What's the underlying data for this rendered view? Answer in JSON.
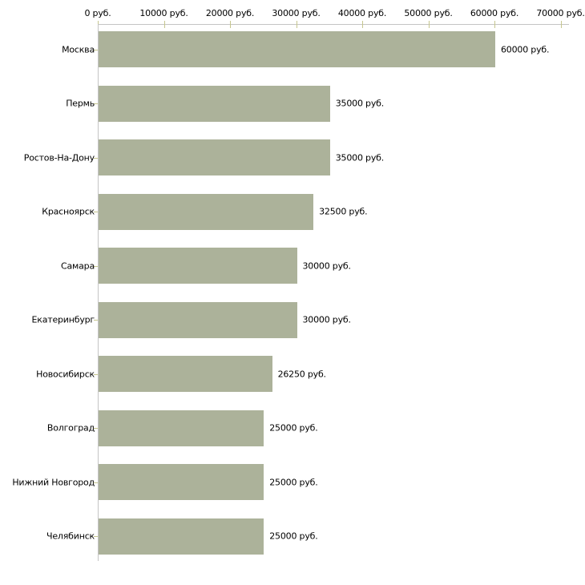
{
  "chart_data": {
    "type": "bar",
    "orientation": "horizontal",
    "title": "",
    "categories": [
      "Москва",
      "Пермь",
      "Ростов-На-Дону",
      "Красноярск",
      "Самара",
      "Екатеринбург",
      "Новосибирск",
      "Волгоград",
      "Нижний Новгород",
      "Челябинск"
    ],
    "values": [
      60000,
      35000,
      35000,
      32500,
      30000,
      30000,
      26250,
      25000,
      25000,
      25000
    ],
    "value_labels": [
      "60000 руб.",
      "35000 руб.",
      "35000 руб.",
      "32500 руб.",
      "30000 руб.",
      "30000 руб.",
      "26250 руб.",
      "25000 руб.",
      "25000 руб.",
      "25000 руб."
    ],
    "x_axis": {
      "position": "top",
      "lim": [
        0,
        70000
      ],
      "tick_values": [
        0,
        10000,
        20000,
        30000,
        40000,
        50000,
        60000,
        70000
      ],
      "tick_labels": [
        "0 руб.",
        "10000 руб.",
        "20000 руб.",
        "30000 руб.",
        "40000 руб.",
        "50000 руб.",
        "60000 руб.",
        "70000 руб."
      ]
    },
    "ylabel": "",
    "xlabel": "",
    "grid": false,
    "legend": false,
    "colors": {
      "bar": "#acb29a",
      "axis_line": "#c4c4c4",
      "tick": "#c6c68e",
      "text": "#000000",
      "background": "#ffffff"
    }
  }
}
